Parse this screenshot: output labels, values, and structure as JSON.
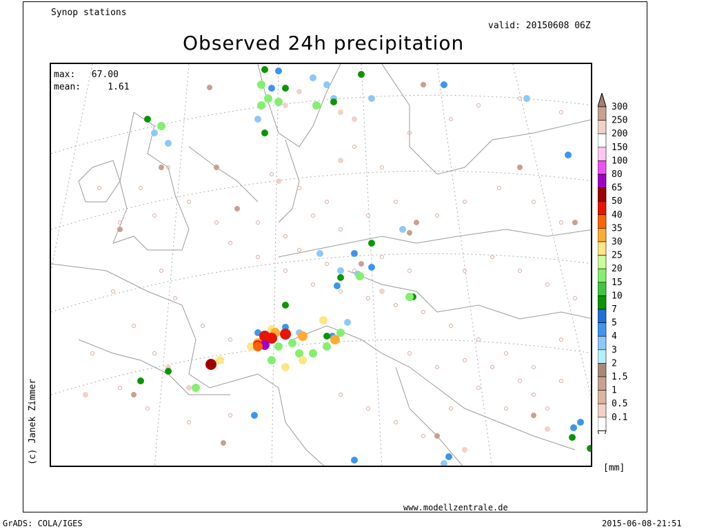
{
  "header": {
    "source": "Synop stations",
    "valid": "valid: 20150608 06Z",
    "title": "Observed 24h precipitation"
  },
  "stats": {
    "max_label": "max:",
    "max_value": "67.00",
    "mean_label": "mean:",
    "mean_value": "1.61"
  },
  "copyright": "(c) Janek Zimmer",
  "website": "www.modellzentrale.de",
  "footer": {
    "left": "GrADS: COLA/IGES",
    "right": "2015-06-08-21:51"
  },
  "legend": {
    "unit": "[mm]",
    "levels": [
      "300",
      "250",
      "200",
      "150",
      "100",
      "80",
      "65",
      "50",
      "40",
      "35",
      "30",
      "25",
      "20",
      "15",
      "10",
      "7",
      "5",
      "4",
      "3",
      "2",
      "1.5",
      "1",
      "0.5",
      "0.1"
    ],
    "colors": [
      "#c8a090",
      "#f0d2c8",
      "#ffffff",
      "#ffc8f0",
      "#f050f0",
      "#a000c8",
      "#a00000",
      "#e61400",
      "#ff6400",
      "#ffaa32",
      "#ffe682",
      "#c8ff96",
      "#82f06e",
      "#3cc83c",
      "#0a9600",
      "#1e6edc",
      "#3c96f0",
      "#8cc8fa",
      "#b4f0fa",
      "#aa8878",
      "#c8a090",
      "#dcb4a0",
      "#f0d2c8",
      "#ffffff"
    ]
  },
  "map_layers": {
    "stations_color_no_rain": "#d9a898",
    "border_color": "#999999",
    "grid_color": "#aaaaaa"
  }
}
